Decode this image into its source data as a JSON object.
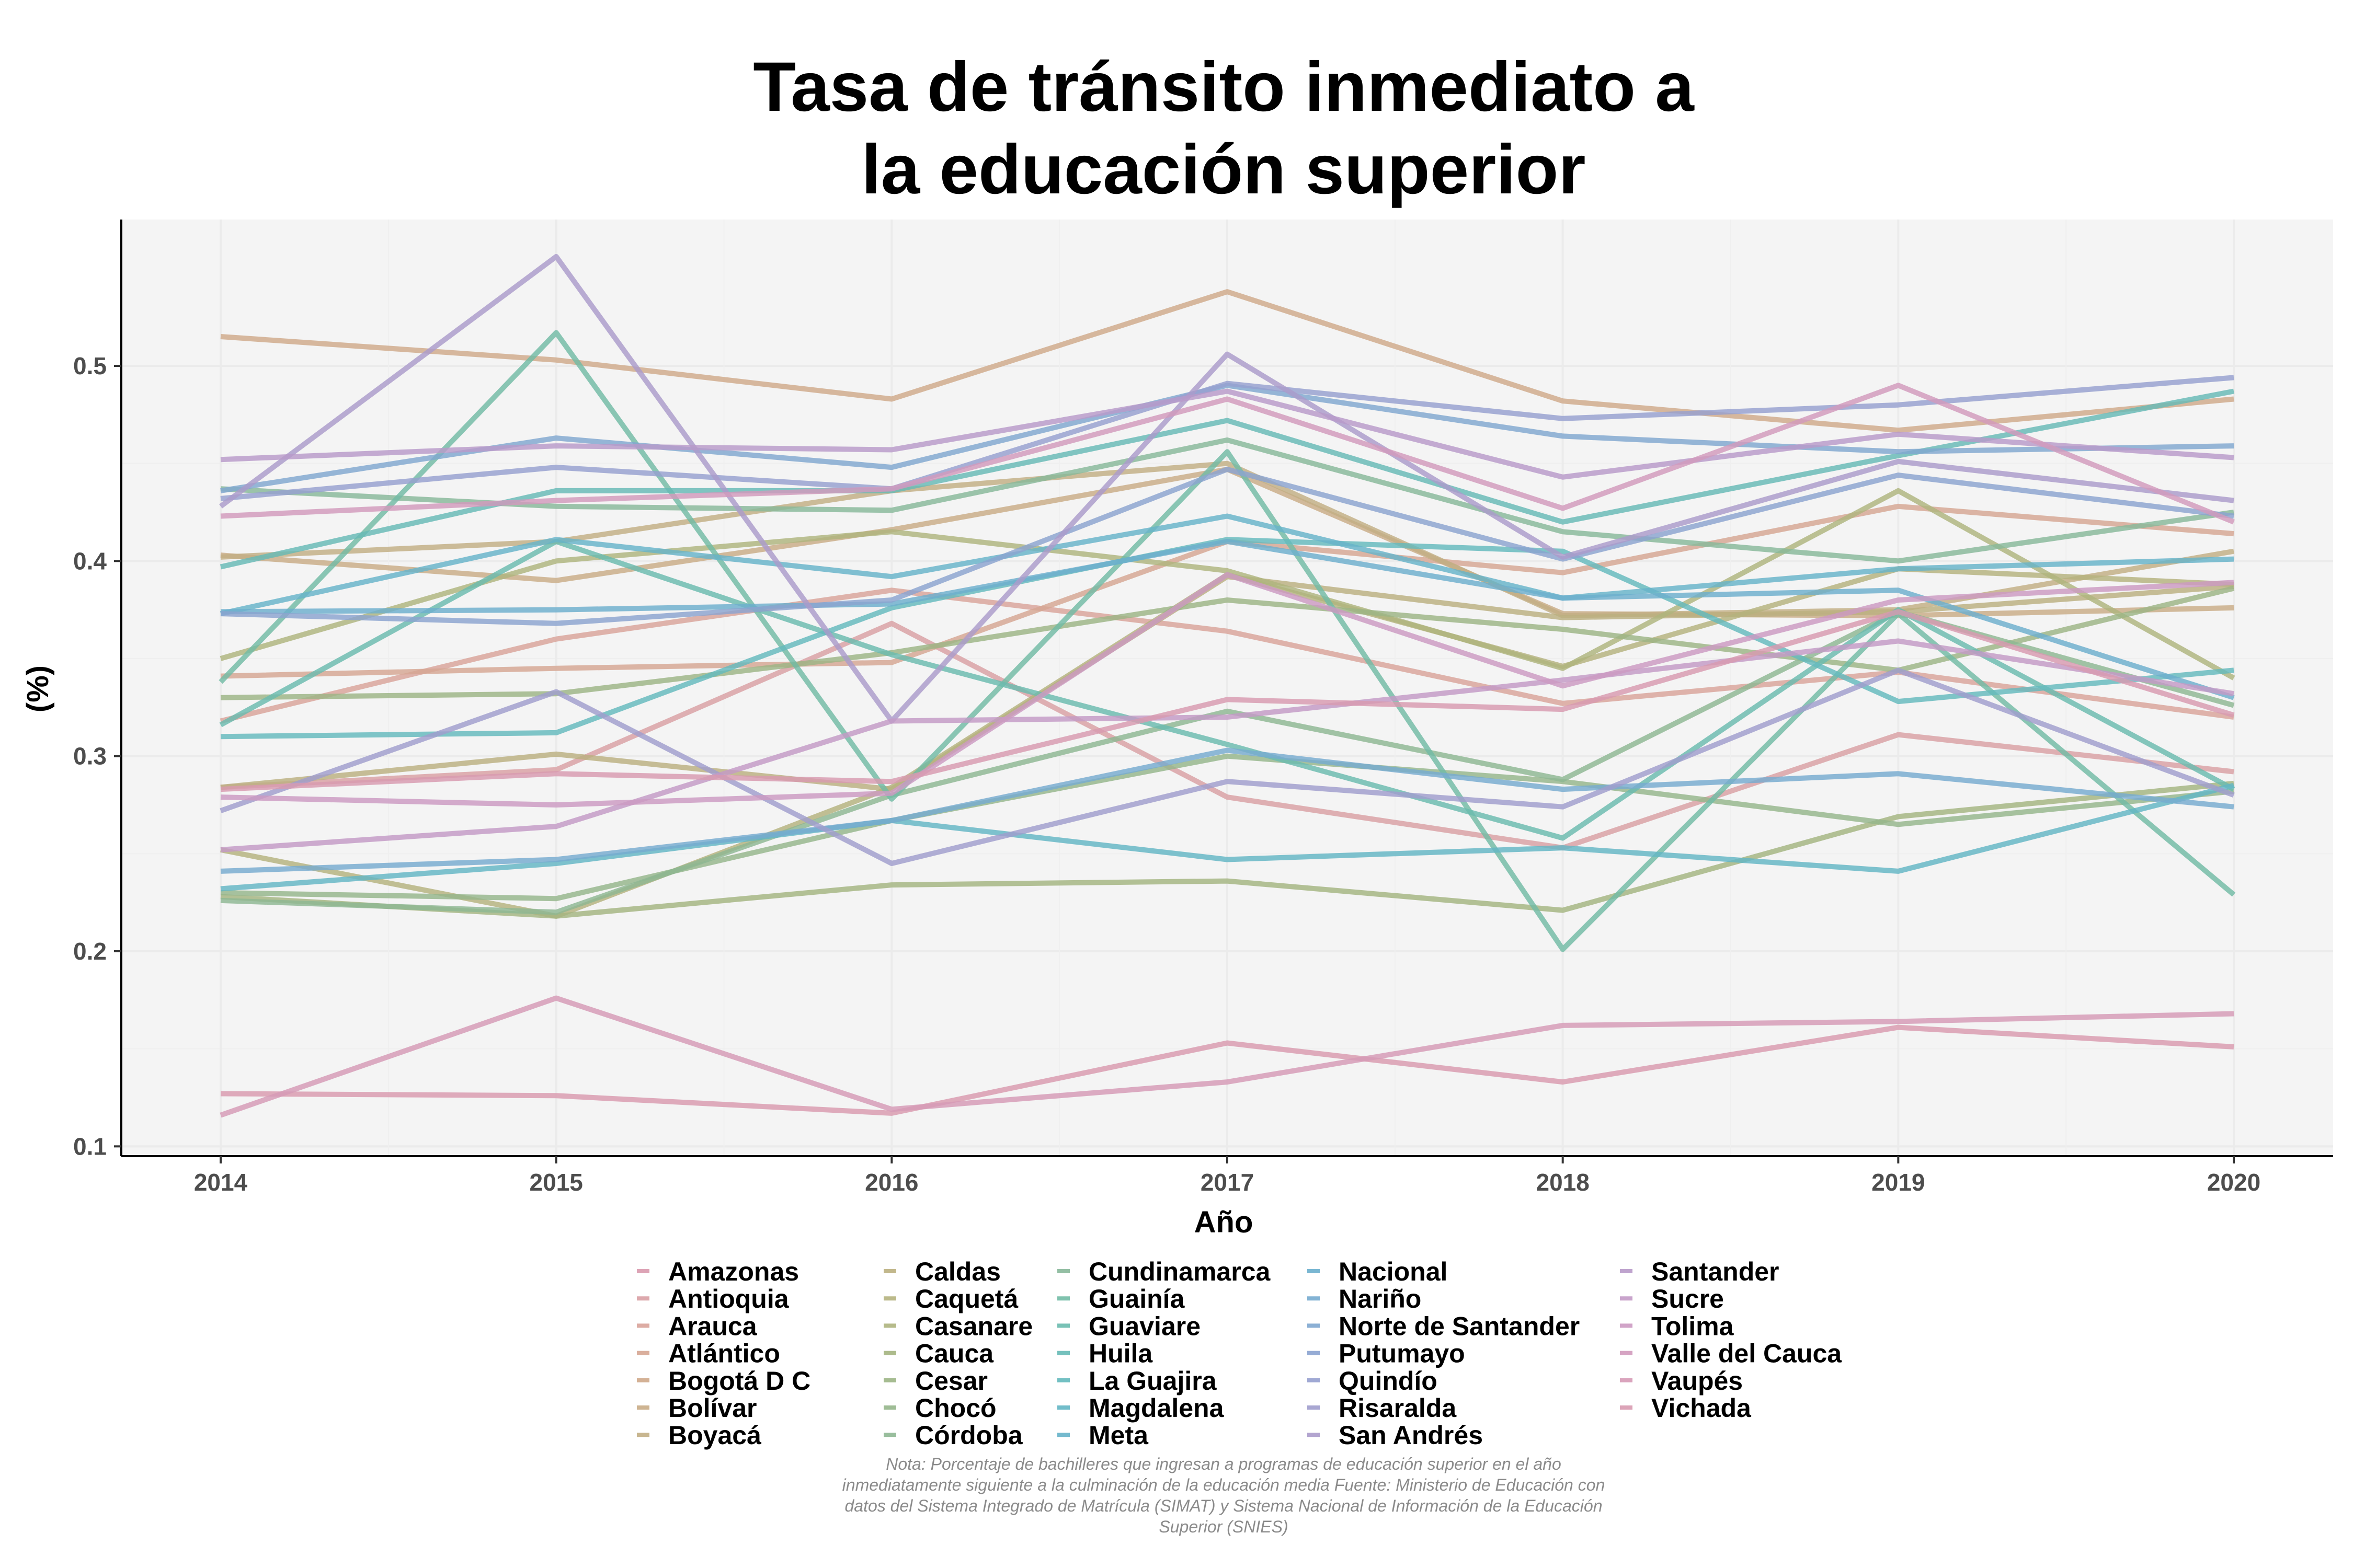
{
  "chart_data": {
    "type": "line",
    "title_lines": [
      "Tasa de tránsito inmediato a",
      "la educación superior"
    ],
    "xlabel": "Año",
    "ylabel": "(%)",
    "x": [
      2014,
      2015,
      2016,
      2017,
      2018,
      2019,
      2020
    ],
    "ylim": [
      0.095,
      0.575
    ],
    "y_ticks": [
      0.1,
      0.2,
      0.3,
      0.4,
      0.5
    ],
    "y_tick_labels": [
      "0.1",
      "0.2",
      "0.3",
      "0.4",
      "0.5"
    ],
    "grid": true,
    "legend_position": "bottom",
    "note_lines": [
      "Nota: Porcentaje de bachilleres que ingresan a programas de educación superior en el año",
      "inmediatamente siguiente a la culminación de la educación media Fuente: Ministerio de Educación con",
      "datos del Sistema Integrado de Matrícula (SIMAT) y Sistema Nacional de Información de la Educación",
      "Superior (SNIES)"
    ],
    "series": [
      {
        "name": "Amazonas",
        "color": "#D99AAE",
        "values": [
          0.127,
          0.126,
          0.117,
          0.153,
          0.133,
          0.161,
          0.151
        ]
      },
      {
        "name": "Antioquia",
        "color": "#D9A0A4",
        "values": [
          0.284,
          0.293,
          0.368,
          0.279,
          0.253,
          0.311,
          0.292
        ]
      },
      {
        "name": "Arauca",
        "color": "#D9A39A",
        "values": [
          0.318,
          0.36,
          0.385,
          0.364,
          0.327,
          0.343,
          0.32
        ]
      },
      {
        "name": "Atlántico",
        "color": "#D6A692",
        "values": [
          0.341,
          0.345,
          0.348,
          0.41,
          0.394,
          0.428,
          0.414
        ]
      },
      {
        "name": "Bogotá D C",
        "color": "#CFA98A",
        "values": [
          0.515,
          0.503,
          0.483,
          0.538,
          0.482,
          0.467,
          0.483
        ]
      },
      {
        "name": "Bolívar",
        "color": "#C9AC86",
        "values": [
          0.403,
          0.39,
          0.416,
          0.447,
          0.373,
          0.372,
          0.376
        ]
      },
      {
        "name": "Boyacá",
        "color": "#C2AE84",
        "values": [
          0.402,
          0.41,
          0.436,
          0.45,
          0.372,
          0.375,
          0.405
        ]
      },
      {
        "name": "Caldas",
        "color": "#BBB080",
        "values": [
          0.284,
          0.301,
          0.283,
          0.392,
          0.371,
          0.374,
          0.387
        ]
      },
      {
        "name": "Caquetá",
        "color": "#B5B27E",
        "values": [
          0.252,
          0.218,
          0.284,
          0.393,
          0.346,
          0.396,
          0.388
        ]
      },
      {
        "name": "Casanare",
        "color": "#AEB47E",
        "values": [
          0.35,
          0.4,
          0.415,
          0.395,
          0.345,
          0.436,
          0.34
        ]
      },
      {
        "name": "Cauca",
        "color": "#A4B480",
        "values": [
          0.228,
          0.218,
          0.234,
          0.236,
          0.221,
          0.269,
          0.286
        ]
      },
      {
        "name": "Cesar",
        "color": "#9CB585",
        "values": [
          0.33,
          0.332,
          0.353,
          0.38,
          0.365,
          0.344,
          0.386
        ]
      },
      {
        "name": "Chocó",
        "color": "#95B68B",
        "values": [
          0.23,
          0.227,
          0.267,
          0.3,
          0.287,
          0.265,
          0.282
        ]
      },
      {
        "name": "Córdoba",
        "color": "#8EB792",
        "values": [
          0.226,
          0.22,
          0.28,
          0.323,
          0.288,
          0.374,
          0.326
        ]
      },
      {
        "name": "Cundinamarca",
        "color": "#88B89A",
        "values": [
          0.437,
          0.428,
          0.426,
          0.462,
          0.415,
          0.4,
          0.425
        ]
      },
      {
        "name": "Guainía",
        "color": "#72BBA5",
        "values": [
          0.338,
          0.517,
          0.278,
          0.456,
          0.201,
          0.373,
          0.229
        ]
      },
      {
        "name": "Guaviare",
        "color": "#6ABBAE",
        "values": [
          0.316,
          0.41,
          0.352,
          0.306,
          0.258,
          0.375,
          0.283
        ]
      },
      {
        "name": "Huila",
        "color": "#66BAB6",
        "values": [
          0.397,
          0.436,
          0.436,
          0.472,
          0.42,
          0.454,
          0.487
        ]
      },
      {
        "name": "La Guajira",
        "color": "#64B9BD",
        "values": [
          0.31,
          0.312,
          0.376,
          0.411,
          0.405,
          0.328,
          0.344
        ]
      },
      {
        "name": "Magdalena",
        "color": "#63B6C4",
        "values": [
          0.232,
          0.245,
          0.267,
          0.247,
          0.253,
          0.241,
          0.285
        ]
      },
      {
        "name": "Meta",
        "color": "#66B3C9",
        "values": [
          0.373,
          0.411,
          0.392,
          0.423,
          0.381,
          0.396,
          0.401
        ]
      },
      {
        "name": "Nacional",
        "color": "#6CAFCD",
        "values": [
          0.374,
          0.375,
          0.378,
          0.41,
          0.381,
          0.385,
          0.33
        ]
      },
      {
        "name": "Nariño",
        "color": "#76ABCF",
        "values": [
          0.241,
          0.247,
          0.267,
          0.303,
          0.283,
          0.291,
          0.274
        ]
      },
      {
        "name": "Norte de Santander",
        "color": "#80A7D0",
        "values": [
          0.436,
          0.463,
          0.448,
          0.49,
          0.464,
          0.456,
          0.459
        ]
      },
      {
        "name": "Putumayo",
        "color": "#8BA3D0",
        "values": [
          0.373,
          0.368,
          0.38,
          0.447,
          0.401,
          0.444,
          0.423
        ]
      },
      {
        "name": "Quindío",
        "color": "#96A0CF",
        "values": [
          0.432,
          0.448,
          0.437,
          0.491,
          0.473,
          0.48,
          0.494
        ]
      },
      {
        "name": "Risaralda",
        "color": "#A09DCD",
        "values": [
          0.272,
          0.333,
          0.245,
          0.287,
          0.274,
          0.344,
          0.28
        ]
      },
      {
        "name": "San Andrés",
        "color": "#AB9BCB",
        "values": [
          0.428,
          0.556,
          0.318,
          0.506,
          0.402,
          0.451,
          0.431
        ]
      },
      {
        "name": "Santander",
        "color": "#B89AC9",
        "values": [
          0.452,
          0.459,
          0.457,
          0.487,
          0.443,
          0.465,
          0.453
        ]
      },
      {
        "name": "Sucre",
        "color": "#C39AC6",
        "values": [
          0.252,
          0.264,
          0.318,
          0.32,
          0.339,
          0.359,
          0.332
        ]
      },
      {
        "name": "Tolima",
        "color": "#CC9AC2",
        "values": [
          0.279,
          0.275,
          0.281,
          0.393,
          0.336,
          0.38,
          0.389
        ]
      },
      {
        "name": "Valle del Cauca",
        "color": "#D29ABC",
        "values": [
          0.423,
          0.431,
          0.437,
          0.483,
          0.427,
          0.49,
          0.42
        ]
      },
      {
        "name": "Vaupés",
        "color": "#D69AB6",
        "values": [
          0.116,
          0.176,
          0.119,
          0.133,
          0.162,
          0.164,
          0.168
        ]
      },
      {
        "name": "Vichada",
        "color": "#D89AB0",
        "values": [
          0.283,
          0.291,
          0.287,
          0.329,
          0.324,
          0.374,
          0.321
        ]
      }
    ]
  }
}
